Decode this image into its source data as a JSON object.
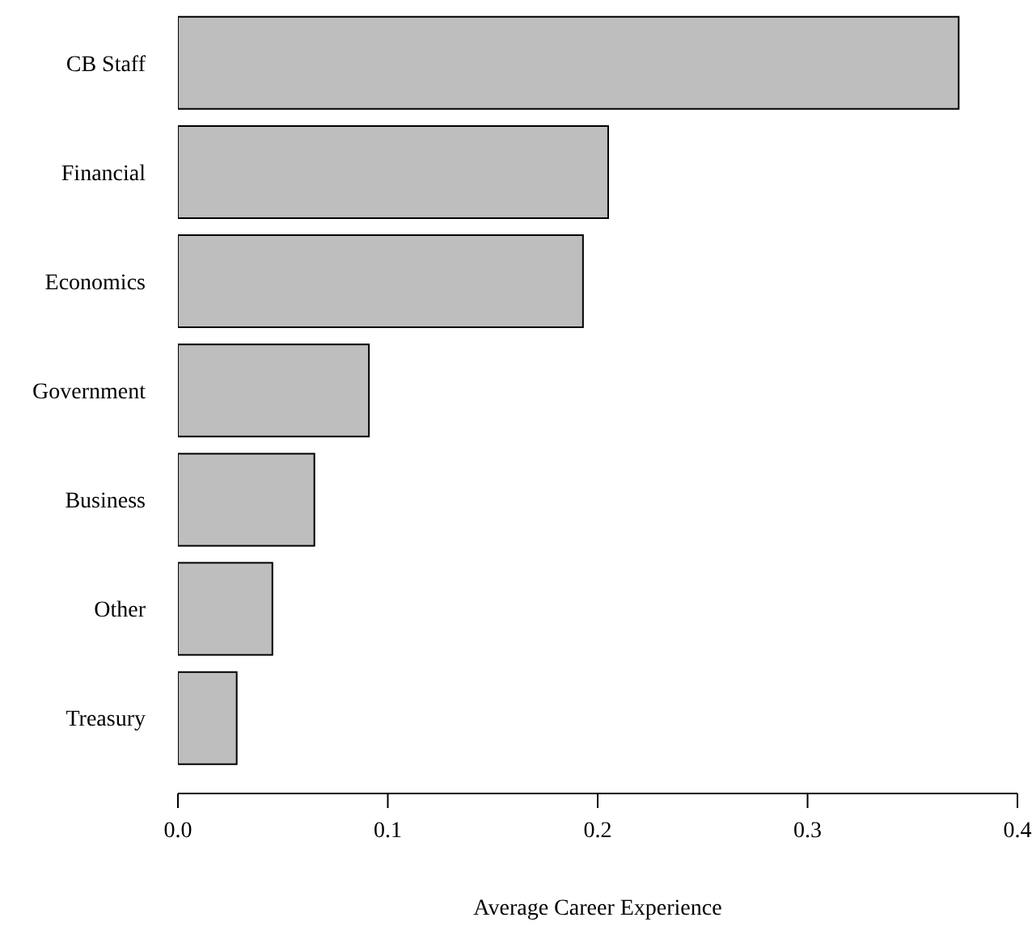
{
  "chart_data": {
    "type": "bar",
    "orientation": "horizontal",
    "xlabel": "Average Career Experience",
    "categories": [
      "CB Staff",
      "Financial",
      "Economics",
      "Government",
      "Business",
      "Other",
      "Treasury"
    ],
    "values": [
      0.372,
      0.205,
      0.193,
      0.091,
      0.065,
      0.045,
      0.028
    ],
    "color": "#bebebe",
    "xlim": [
      0,
      0.4
    ],
    "xticks": [
      {
        "value": 0,
        "label": "0.0"
      },
      {
        "value": 0.1,
        "label": "0.1"
      },
      {
        "value": 0.2,
        "label": "0.2"
      },
      {
        "value": 0.3,
        "label": "0.3"
      },
      {
        "value": 0.4,
        "label": "0.4"
      }
    ]
  }
}
